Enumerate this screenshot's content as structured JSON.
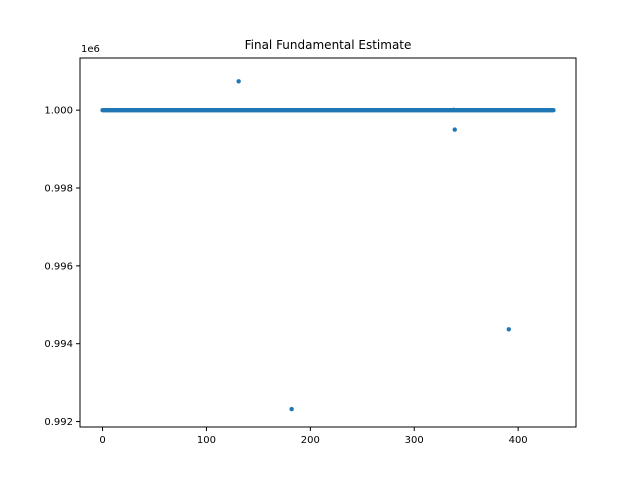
{
  "chart_data": {
    "type": "scatter",
    "title": "Final Fundamental Estimate",
    "xlabel": "",
    "ylabel": "",
    "y_offset_label": "1e6",
    "xlim": [
      -21.7,
      455.7
    ],
    "ylim": [
      0.99186,
      1.00134
    ],
    "x_ticks": [
      0,
      100,
      200,
      300,
      400
    ],
    "x_tick_labels": [
      "0",
      "100",
      "200",
      "300",
      "400"
    ],
    "y_ticks": [
      0.992,
      0.994,
      0.996,
      0.998,
      1.0
    ],
    "y_tick_labels": [
      "0.992",
      "0.994",
      "0.996",
      "0.998",
      "1.000"
    ],
    "grid": false,
    "marker_color": "#1f77b4",
    "baseline": {
      "x_start": 0,
      "x_end": 434,
      "y": 1.0
    },
    "outliers": [
      {
        "x": 131,
        "y": 1.00074
      },
      {
        "x": 182,
        "y": 0.99232
      },
      {
        "x": 338,
        "y": 1.00001
      },
      {
        "x": 339,
        "y": 0.9995
      },
      {
        "x": 391,
        "y": 0.99437
      }
    ]
  }
}
